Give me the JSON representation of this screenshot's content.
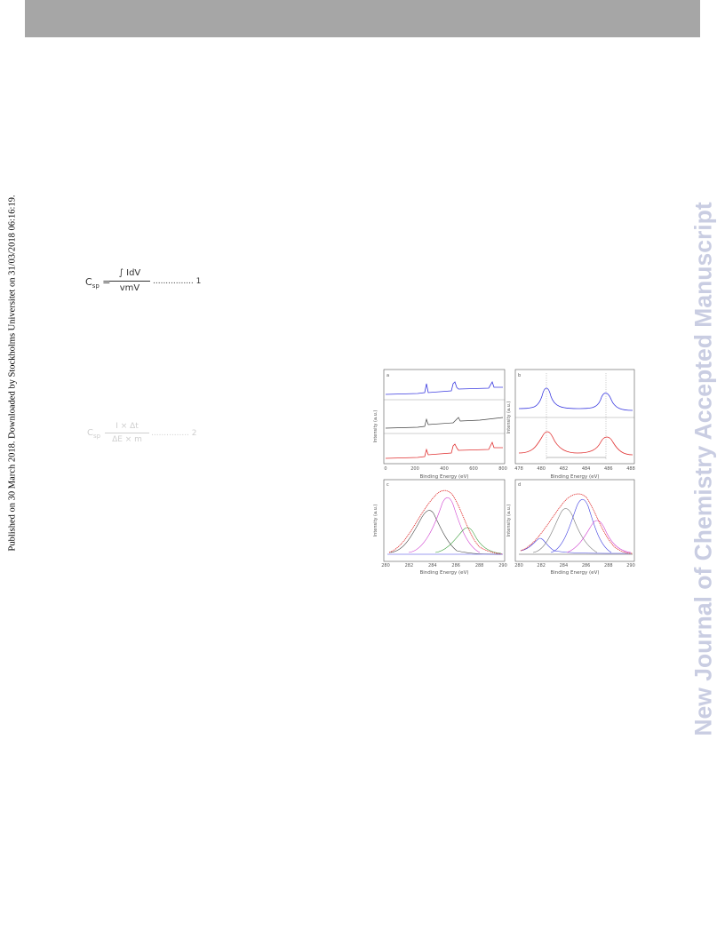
{
  "header": {
    "bar_color": "#a6a6a6"
  },
  "side_note": "Published on 30 March 2018. Downloaded by Stockholms Universitet on 31/03/2018 06:16:19.",
  "watermark": "New Journal of Chemistry Accepted Manuscript",
  "equation1": {
    "lhs": "C",
    "lhs_sub": "sp",
    "equals": "=",
    "numerator": "∫ IdV",
    "denominator": "vmV",
    "dots": "................ 1"
  },
  "equation2": {
    "lhs": "C",
    "lhs_sub": "sp",
    "numerator": "I × Δt",
    "denominator": "ΔE × m",
    "dots": "............... 2"
  },
  "figure": {
    "panel_a": {
      "label": "a",
      "ylabel": "Intensity (a.u.)",
      "xlabel": "Binding Energy (eV)",
      "xticks": [
        "0",
        "200",
        "400",
        "600",
        "800"
      ]
    },
    "panel_b": {
      "label": "b",
      "ylabel": "Intensity (a.u.)",
      "xlabel": "Binding Energy (eV)",
      "xticks": [
        "478",
        "480",
        "482",
        "484",
        "486",
        "488"
      ]
    },
    "panel_c": {
      "label": "c",
      "ylabel": "Intensity (a.u.)",
      "xlabel": "Binding Energy (eV)",
      "xticks": [
        "280",
        "282",
        "284",
        "286",
        "288",
        "290"
      ]
    },
    "panel_d": {
      "label": "d",
      "ylabel": "Intensity (a.u.)",
      "xlabel": "Binding Energy (eV)",
      "xticks": [
        "280",
        "282",
        "284",
        "286",
        "288",
        "290"
      ]
    },
    "colors": {
      "blue": "#3b3be0",
      "red": "#e03030",
      "dark": "#444444",
      "magenta": "#d040d0",
      "green": "#40a040",
      "gray": "#777777"
    }
  }
}
